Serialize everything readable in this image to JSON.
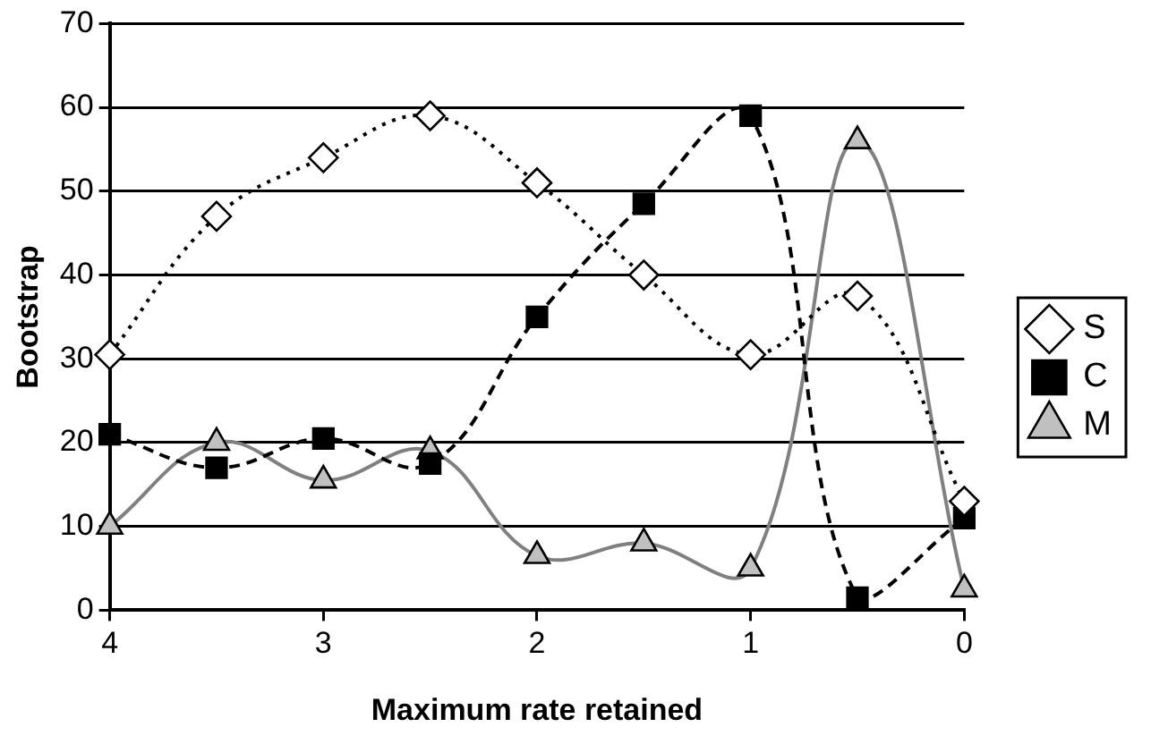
{
  "chart_data": {
    "type": "line",
    "xlabel": "Maximum rate retained",
    "ylabel": "Bootstrap",
    "x": [
      4,
      3.5,
      3,
      2.5,
      2,
      1.5,
      1,
      0.5,
      0
    ],
    "xlim": [
      4,
      0
    ],
    "xticks": [
      4,
      3,
      2,
      1,
      0
    ],
    "ylim": [
      0,
      70
    ],
    "yticks": [
      0,
      10,
      20,
      30,
      40,
      50,
      60,
      70
    ],
    "grid": "y",
    "legend": "right",
    "series": [
      {
        "name": "S",
        "color": "#000000",
        "marker": "diamond",
        "line_style": "dotted",
        "values": [
          30.5,
          47,
          54,
          59,
          51,
          40,
          30.5,
          37.5,
          13
        ]
      },
      {
        "name": "C",
        "color": "#000000",
        "marker": "square",
        "line_style": "dashed",
        "values": [
          21,
          17,
          20.5,
          17.5,
          35,
          48.5,
          59,
          1.5,
          11
        ]
      },
      {
        "name": "M",
        "color": "#808080",
        "marker": "triangle",
        "line_style": "solid",
        "values": [
          10,
          20,
          15.5,
          19,
          6.5,
          8,
          5,
          56,
          2.5
        ]
      }
    ]
  }
}
